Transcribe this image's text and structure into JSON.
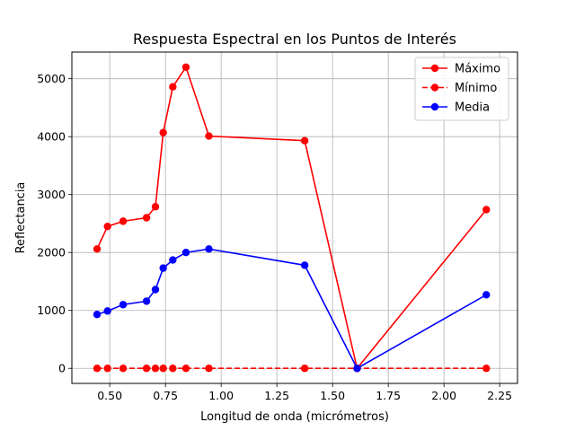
{
  "chart_data": {
    "type": "line",
    "title": "Respuesta Espectral en los Puntos de Interés",
    "xlabel": "Longitud de onda (micrómetros)",
    "ylabel": "Reflectancia",
    "xlim": [
      0.33,
      2.33
    ],
    "ylim": [
      -260,
      5460
    ],
    "xticks": [
      0.5,
      0.75,
      1.0,
      1.25,
      1.5,
      1.75,
      2.0,
      2.25
    ],
    "xtick_labels": [
      "0.50",
      "0.75",
      "1.00",
      "1.25",
      "1.50",
      "1.75",
      "2.00",
      "2.25"
    ],
    "yticks": [
      0,
      1000,
      2000,
      3000,
      4000,
      5000
    ],
    "ytick_labels": [
      "0",
      "1000",
      "2000",
      "3000",
      "4000",
      "5000"
    ],
    "grid": true,
    "legend_position": "top-right",
    "x": [
      0.443,
      0.49,
      0.56,
      0.665,
      0.705,
      0.74,
      0.783,
      0.842,
      0.945,
      1.375,
      1.61,
      2.19
    ],
    "series": [
      {
        "name": "Máximo",
        "color": "#ff0000",
        "linestyle": "solid",
        "values": [
          2060,
          2450,
          2540,
          2600,
          2790,
          4070,
          4860,
          5200,
          4010,
          3930,
          0,
          2740
        ]
      },
      {
        "name": "Mínimo",
        "color": "#ff0000",
        "linestyle": "dashed",
        "values": [
          0,
          0,
          0,
          0,
          0,
          0,
          0,
          0,
          0,
          0,
          0,
          0
        ]
      },
      {
        "name": "Media",
        "color": "#0000ff",
        "linestyle": "solid",
        "values": [
          930,
          990,
          1100,
          1160,
          1360,
          1730,
          1870,
          2000,
          2060,
          1780,
          0,
          1270
        ]
      }
    ]
  }
}
